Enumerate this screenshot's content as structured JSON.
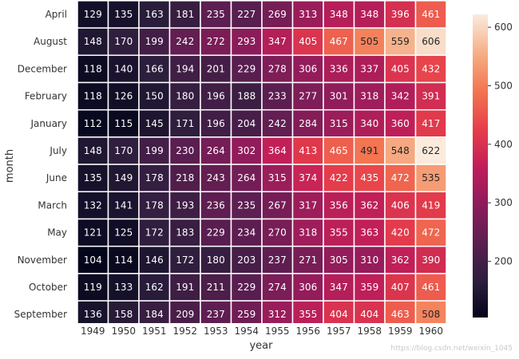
{
  "chart_data": {
    "type": "heatmap",
    "xlabel": "year",
    "ylabel": "month",
    "x": [
      "1949",
      "1950",
      "1951",
      "1952",
      "1953",
      "1954",
      "1955",
      "1956",
      "1957",
      "1958",
      "1959",
      "1960"
    ],
    "y": [
      "April",
      "August",
      "December",
      "February",
      "January",
      "July",
      "June",
      "March",
      "May",
      "November",
      "October",
      "September"
    ],
    "values": [
      [
        129,
        135,
        163,
        181,
        235,
        227,
        269,
        313,
        348,
        348,
        396,
        461
      ],
      [
        148,
        170,
        199,
        242,
        272,
        293,
        347,
        405,
        467,
        505,
        559,
        606
      ],
      [
        118,
        140,
        166,
        194,
        201,
        229,
        278,
        306,
        336,
        337,
        405,
        432
      ],
      [
        118,
        126,
        150,
        180,
        196,
        188,
        233,
        277,
        301,
        318,
        342,
        391
      ],
      [
        112,
        115,
        145,
        171,
        196,
        204,
        242,
        284,
        315,
        340,
        360,
        417
      ],
      [
        148,
        170,
        199,
        230,
        264,
        302,
        364,
        413,
        465,
        491,
        548,
        622
      ],
      [
        135,
        149,
        178,
        218,
        243,
        264,
        315,
        374,
        422,
        435,
        472,
        535
      ],
      [
        132,
        141,
        178,
        193,
        236,
        235,
        267,
        317,
        356,
        362,
        406,
        419
      ],
      [
        121,
        125,
        172,
        183,
        229,
        234,
        270,
        318,
        355,
        363,
        420,
        472
      ],
      [
        104,
        114,
        146,
        172,
        180,
        203,
        237,
        271,
        305,
        310,
        362,
        390
      ],
      [
        119,
        133,
        162,
        191,
        211,
        229,
        274,
        306,
        347,
        359,
        407,
        461
      ],
      [
        136,
        158,
        184,
        209,
        237,
        259,
        312,
        355,
        404,
        404,
        463,
        508
      ]
    ],
    "annotations": "cell values",
    "colormap": "rocket",
    "colorbar": {
      "ticks": [
        200,
        300,
        400,
        500,
        600
      ],
      "range": [
        104,
        622
      ]
    }
  },
  "watermark": "https://blog.csdn.net/weixin_1045"
}
